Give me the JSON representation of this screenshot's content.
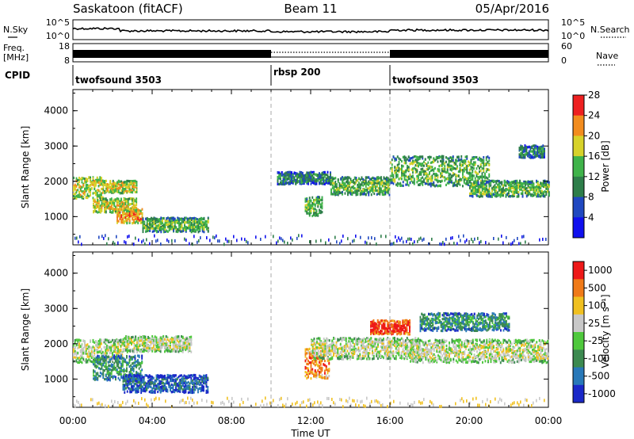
{
  "header": {
    "station": "Saskatoon (fitACF)",
    "beam": "Beam 11",
    "date": "05/Apr/2016"
  },
  "top_panels": {
    "nsky_label": "N.Sky",
    "nsky_ticks": [
      "10^5",
      "10^0"
    ],
    "nsearch_label": "N.Search",
    "nsearch_ticks": [
      "10^5",
      "10^0"
    ],
    "freq_label_1": "Freq.",
    "freq_label_2": "[MHz]",
    "freq_ticks": [
      "18",
      "8"
    ],
    "nave_label": "Nave",
    "nave_ticks": [
      "60",
      "0"
    ],
    "cpid_label": "CPID",
    "cpid_segments": [
      {
        "label": "twofsound 3503",
        "start_h": 0,
        "end_h": 10
      },
      {
        "label": "rbsp 200",
        "start_h": 10,
        "end_h": 16
      },
      {
        "label": "twofsound 3503",
        "start_h": 16,
        "end_h": 24
      }
    ]
  },
  "chart_data": [
    {
      "type": "heatmap",
      "name": "power",
      "ylabel": "Slant Range [km]",
      "ylim": [
        200,
        4600
      ],
      "yticks": [
        "1000",
        "2000",
        "3000",
        "4000"
      ],
      "xlim": [
        0,
        24
      ],
      "colorbar": {
        "label": "Power [dB]",
        "ticks": [
          "4",
          "8",
          "12",
          "16",
          "20",
          "24",
          "28"
        ],
        "colors": [
          "#1010ee",
          "#2048c0",
          "#2e7e4a",
          "#3fb34a",
          "#d7d22a",
          "#f28c1e",
          "#ee2020"
        ]
      },
      "echo_regions": [
        {
          "t0": 0.0,
          "t1": 1.5,
          "r0": 1550,
          "r1": 2150,
          "level": 4
        },
        {
          "t0": 1.5,
          "t1": 3.2,
          "r0": 1700,
          "r1": 2050,
          "level": 4
        },
        {
          "t0": 1.0,
          "t1": 3.2,
          "r0": 1150,
          "r1": 1550,
          "level": 4
        },
        {
          "t0": 2.2,
          "t1": 3.5,
          "r0": 850,
          "r1": 1250,
          "level": 5
        },
        {
          "t0": 3.5,
          "t1": 6.8,
          "r0": 600,
          "r1": 1000,
          "level": 3
        },
        {
          "t0": 10.3,
          "t1": 13.0,
          "r0": 1950,
          "r1": 2300,
          "level": 2
        },
        {
          "t0": 11.7,
          "t1": 12.6,
          "r0": 1050,
          "r1": 1600,
          "level": 3
        },
        {
          "t0": 13.0,
          "t1": 16.0,
          "r0": 1650,
          "r1": 2150,
          "level": 3
        },
        {
          "t0": 16.0,
          "t1": 21.0,
          "r0": 1900,
          "r1": 2750,
          "level": 3
        },
        {
          "t0": 20.0,
          "t1": 24.0,
          "r0": 1600,
          "r1": 2050,
          "level": 3
        },
        {
          "t0": 22.5,
          "t1": 23.8,
          "r0": 2700,
          "r1": 3050,
          "level": 2
        }
      ]
    },
    {
      "type": "heatmap",
      "name": "velocity",
      "ylabel": "Slant Range [km]",
      "ylim": [
        200,
        4600
      ],
      "yticks": [
        "1000",
        "2000",
        "3000",
        "4000"
      ],
      "xlim": [
        0,
        24
      ],
      "colorbar": {
        "label": "Velocity [m s⁻¹]",
        "ticks": [
          "1000",
          "500",
          "100",
          "25",
          "-25",
          "-100",
          "-500",
          "-1000"
        ],
        "colors": [
          "#1a28c8",
          "#2878b8",
          "#3c8a50",
          "#4ec83c",
          "#c8c8c8",
          "#f0c020",
          "#f07a18",
          "#ee1818"
        ]
      },
      "echo_regions": [
        {
          "t0": 0.0,
          "t1": 2.5,
          "r0": 1500,
          "r1": 2150,
          "level": 4
        },
        {
          "t0": 2.5,
          "t1": 6.0,
          "r0": 1800,
          "r1": 2250,
          "level": 4
        },
        {
          "t0": 1.0,
          "t1": 3.5,
          "r0": 1000,
          "r1": 1700,
          "level": 2
        },
        {
          "t0": 2.5,
          "t1": 6.8,
          "r0": 650,
          "r1": 1150,
          "level": 1
        },
        {
          "t0": 11.7,
          "t1": 12.9,
          "r0": 1050,
          "r1": 1900,
          "level": 6
        },
        {
          "t0": 12.0,
          "t1": 17.5,
          "r0": 1600,
          "r1": 2200,
          "level": 4
        },
        {
          "t0": 15.0,
          "t1": 17.0,
          "r0": 2300,
          "r1": 2700,
          "level": 7
        },
        {
          "t0": 17.5,
          "t1": 22.0,
          "r0": 2400,
          "r1": 2900,
          "level": 2
        },
        {
          "t0": 17.0,
          "t1": 24.0,
          "r0": 1500,
          "r1": 2150,
          "level": 4
        }
      ]
    }
  ],
  "xaxis": {
    "label": "Time UT",
    "ticks": [
      "00:00",
      "04:00",
      "08:00",
      "12:00",
      "16:00",
      "20:00",
      "00:00"
    ]
  }
}
